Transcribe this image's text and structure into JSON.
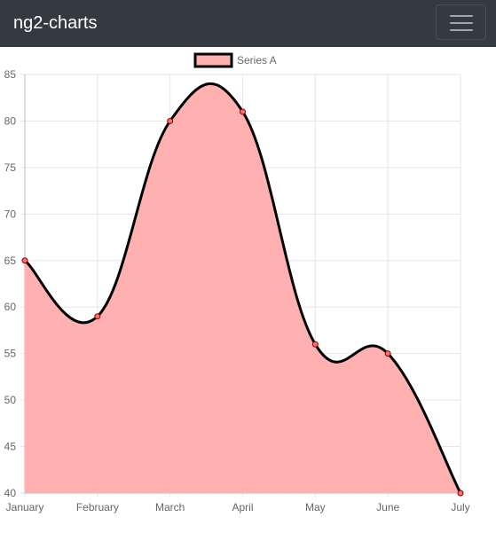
{
  "navbar": {
    "brand": "ng2-charts",
    "toggler_icon": "hamburger-menu-icon",
    "background": "#343a40"
  },
  "chart_data": {
    "type": "line",
    "categories": [
      "January",
      "February",
      "March",
      "April",
      "May",
      "June",
      "July"
    ],
    "series": [
      {
        "name": "Series A",
        "values": [
          65,
          59,
          80,
          81,
          56,
          55,
          40
        ]
      }
    ],
    "ylim": [
      40,
      85
    ],
    "yticks": [
      "40",
      "45",
      "50",
      "55",
      "60",
      "65",
      "70",
      "75",
      "80",
      "85"
    ],
    "grid": true,
    "legend": "top-center",
    "fill_color": "#ffb1b1",
    "line_color": "#000000",
    "point_color": "#ff6b6b"
  }
}
